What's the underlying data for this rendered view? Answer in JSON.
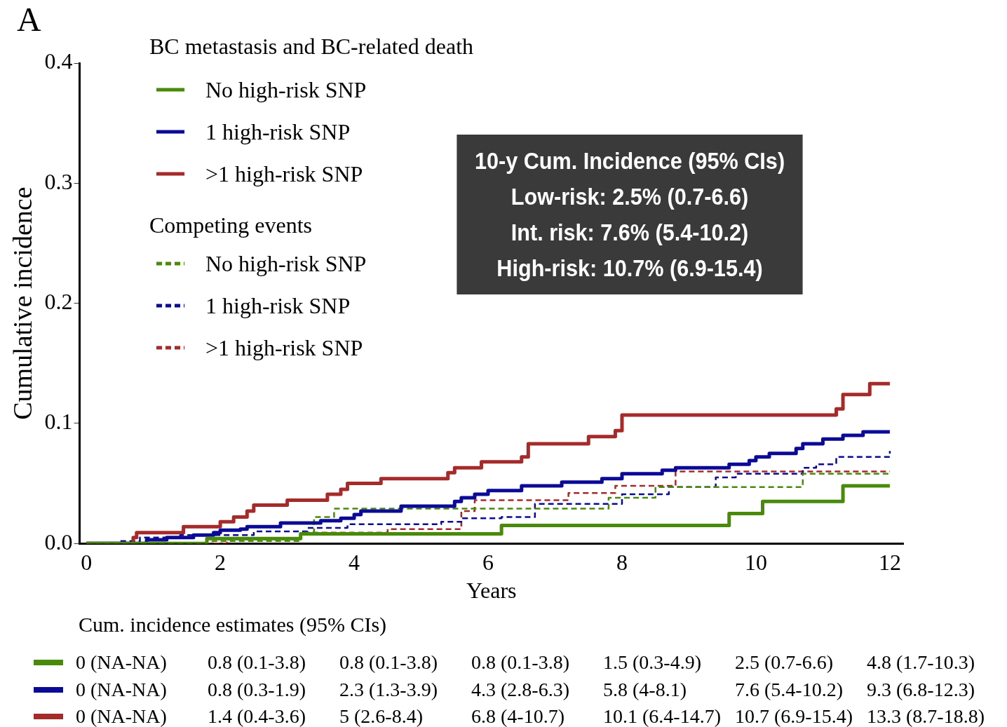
{
  "chart_data": {
    "type": "step",
    "title": "A",
    "xlabel": "Years",
    "ylabel": "Cumulative incidence",
    "legend_title": "BC metastasis and BC-related death",
    "legend": "top left",
    "grid": false,
    "xlim": [
      -0.1,
      12.2
    ],
    "xticks": [
      0,
      2,
      4,
      6,
      8,
      10,
      12
    ],
    "ylim": [
      0,
      0.4
    ],
    "yticks": [
      {
        "value": 0,
        "label": "0.0"
      },
      0.1,
      0.2,
      0.3,
      0.4
    ],
    "series": [
      {
        "name": "No high-risk SNP",
        "color": "#4a8a0a",
        "line_style": "solid",
        "x": [
          0,
          1.8,
          3.2,
          6.2,
          9.6,
          10.1,
          11.3,
          12
        ],
        "values": [
          0,
          0.004,
          0.008,
          0.015,
          0.025,
          0.035,
          0.048,
          0.048
        ]
      },
      {
        "name": "1 high-risk SNP",
        "color": "#0a0a96",
        "line_style": "solid",
        "x": [
          0,
          0.9,
          1.2,
          1.6,
          1.9,
          2.0,
          2.3,
          2.4,
          2.9,
          3.5,
          3.8,
          4.0,
          4.1,
          4.7,
          5.5,
          5.6,
          5.8,
          6.0,
          6.5,
          7.1,
          7.7,
          8.0,
          8.6,
          8.8,
          9.6,
          9.9,
          10.0,
          10.2,
          10.6,
          10.7,
          11.0,
          11.3,
          11.6,
          12
        ],
        "values": [
          0,
          0.003,
          0.005,
          0.007,
          0.009,
          0.011,
          0.012,
          0.014,
          0.017,
          0.019,
          0.021,
          0.024,
          0.027,
          0.031,
          0.035,
          0.038,
          0.041,
          0.044,
          0.048,
          0.051,
          0.054,
          0.058,
          0.061,
          0.063,
          0.066,
          0.069,
          0.072,
          0.075,
          0.079,
          0.083,
          0.087,
          0.09,
          0.093,
          0.093
        ]
      },
      {
        "name": ">1 high-risk SNP",
        "color": "#a52a2a",
        "line_style": "solid",
        "x": [
          0,
          0.7,
          0.75,
          1.45,
          2.0,
          2.2,
          2.4,
          2.5,
          3.0,
          3.6,
          3.8,
          3.9,
          4.4,
          5.4,
          5.5,
          5.9,
          6.5,
          6.6,
          7.5,
          7.9,
          8.0,
          11.2,
          11.3,
          11.7,
          12
        ],
        "values": [
          0,
          0.005,
          0.009,
          0.014,
          0.018,
          0.022,
          0.027,
          0.032,
          0.036,
          0.041,
          0.045,
          0.05,
          0.054,
          0.059,
          0.063,
          0.068,
          0.072,
          0.083,
          0.089,
          0.094,
          0.107,
          0.112,
          0.124,
          0.133,
          0.133
        ]
      },
      {
        "name": "No high-risk SNP",
        "color": "#4a8a0a",
        "line_style": "dashed",
        "x": [
          0,
          1.8,
          3.2,
          3.4,
          3.7,
          7.8,
          8.5,
          10.7,
          12
        ],
        "values": [
          0,
          0.002,
          0.009,
          0.022,
          0.029,
          0.038,
          0.047,
          0.058,
          0.058
        ]
      },
      {
        "name": "1 high-risk SNP",
        "color": "#0a0a96",
        "line_style": "dashed",
        "x": [
          0,
          0.5,
          0.8,
          1.4,
          2.5,
          3.3,
          3.9,
          5.3,
          5.6,
          6.2,
          6.7,
          8.0,
          8.7,
          9.4,
          9.7,
          10.7,
          10.9,
          11.2,
          12
        ],
        "values": [
          0,
          0.002,
          0.005,
          0.007,
          0.01,
          0.013,
          0.016,
          0.018,
          0.021,
          0.022,
          0.033,
          0.041,
          0.047,
          0.055,
          0.058,
          0.063,
          0.066,
          0.072,
          0.077
        ]
      },
      {
        "name": ">1 high-risk SNP",
        "color": "#a52a2a",
        "line_style": "dashed",
        "x": [
          0,
          2.1,
          3.2,
          4.5,
          5.6,
          5.8,
          7.2,
          7.9,
          8.8,
          12
        ],
        "values": [
          0,
          0.0035,
          0.009,
          0.012,
          0.027,
          0.036,
          0.042,
          0.048,
          0.06,
          0.06
        ]
      }
    ],
    "annotations": [
      "Competing events",
      "10-y Cum. Incidence (95% CIs)",
      "Low-risk: 2.5% (0.7-6.6)",
      "Int. risk: 7.6% (5.4-10.2)",
      "High-risk: 10.7% (6.9-15.4)",
      "Cum. incidence estimates (95% CIs)",
      "0 (NA-NA)",
      "0.8 (0.1-3.8)",
      "0.8 (0.1-3.8)",
      "0.8 (0.1-3.8)",
      "1.5 (0.3-4.9)",
      "2.5 (0.7-6.6)",
      "4.8 (1.7-10.3)",
      "0 (NA-NA)",
      "0.8 (0.3-1.9)",
      "2.3 (1.3-3.9)",
      "4.3 (2.8-6.3)",
      "5.8 (4-8.1)",
      "7.6 (5.4-10.2)",
      "9.3 (6.8-12.3)",
      "0 (NA-NA)",
      "1.4 (0.4-3.6)",
      "5 (2.6-8.4)",
      "6.8 (4-10.7)",
      "10.1 (6.4-14.7)",
      "10.7 (6.9-15.4)",
      "13.3 (8.7-18.8)"
    ]
  }
}
